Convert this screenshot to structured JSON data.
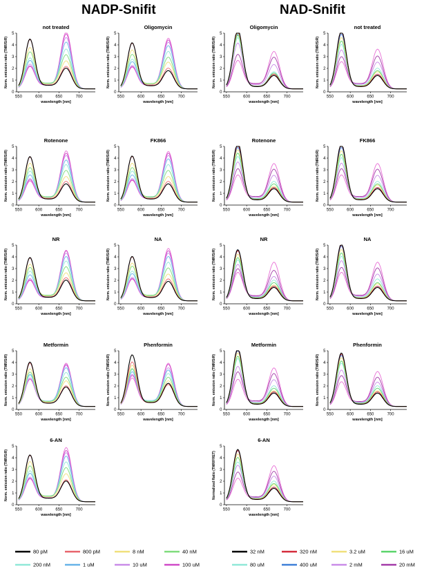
{
  "headers": {
    "left": "NADP-Snifit",
    "right": "NAD-Snifit"
  },
  "colors": {
    "nadp": [
      "#000000",
      "#e8636b",
      "#f0e07a",
      "#7edc7a",
      "#8fe8d8",
      "#66b3e8",
      "#c98be8",
      "#cf49c7",
      "#e86fd6"
    ],
    "nad": [
      "#000000",
      "#d42a3a",
      "#f0e07a",
      "#59d46a",
      "#8fe8d8",
      "#3d7fd8",
      "#c98be8",
      "#a33aa8",
      "#e86fd6"
    ]
  },
  "legend": {
    "nadp": [
      {
        "label": "80 pM"
      },
      {
        "label": "800 pM"
      },
      {
        "label": "8 nM"
      },
      {
        "label": "40 nM"
      },
      {
        "label": "200 nM"
      },
      {
        "label": "1 uM"
      },
      {
        "label": "10 uM"
      },
      {
        "label": "100 uM"
      }
    ],
    "nad": [
      {
        "label": "32 nM"
      },
      {
        "label": "320 nM"
      },
      {
        "label": "3.2 uM"
      },
      {
        "label": "16 uM"
      },
      {
        "label": "80 uM"
      },
      {
        "label": "400 uM"
      },
      {
        "label": "2 mM"
      },
      {
        "label": "20 mM"
      }
    ]
  },
  "chart_data": [
    {
      "type": "line",
      "title": "not treated",
      "xlabel": "wavelength [nm]",
      "ylabel": "Norm. emission ratio (TMR/SiR)",
      "xlim": [
        545,
        740
      ],
      "ylim": [
        0,
        5
      ],
      "xticks": [
        550,
        600,
        650,
        700
      ],
      "yticks": [
        0,
        1,
        2,
        3,
        4,
        5
      ],
      "peaks1": [
        4.15,
        4.1,
        3.4,
        3.0,
        2.5,
        2.3,
        2.0,
        1.85,
        1.8
      ],
      "peaks2": [
        1.7,
        1.85,
        2.3,
        2.8,
        3.3,
        3.9,
        4.3,
        4.6,
        4.8
      ],
      "series_group": "nadp"
    },
    {
      "type": "line",
      "title": "Oligomycin",
      "xlabel": "wavelength [nm]",
      "ylabel": "Norm. emission ratio (TMR/SiR)",
      "xlim": [
        545,
        740
      ],
      "ylim": [
        0,
        5
      ],
      "xticks": [
        550,
        600,
        650,
        700
      ],
      "yticks": [
        0,
        1,
        2,
        3,
        4,
        5
      ],
      "peaks1": [
        3.85,
        3.8,
        3.2,
        2.8,
        2.4,
        2.2,
        1.9,
        1.8,
        1.75
      ],
      "peaks2": [
        1.5,
        1.7,
        2.2,
        2.6,
        3.1,
        3.6,
        3.9,
        4.1,
        4.25
      ],
      "series_group": "nadp"
    },
    {
      "type": "line",
      "title": "Oligomycin",
      "xlabel": "wavelength [nm]",
      "ylabel": "Norm. emission ratio (TMR/SiR)",
      "xlim": [
        545,
        740
      ],
      "ylim": [
        0,
        5
      ],
      "xticks": [
        550,
        600,
        650,
        700
      ],
      "yticks": [
        0,
        1,
        2,
        3,
        4,
        5
      ],
      "peaks1": [
        5.0,
        4.9,
        4.7,
        4.5,
        4.3,
        4.6,
        3.8,
        2.8,
        2.3
      ],
      "peaks2": [
        1.1,
        1.2,
        1.2,
        1.3,
        1.4,
        1.2,
        2.0,
        2.6,
        3.1
      ],
      "series_group": "nad"
    },
    {
      "type": "line",
      "title": "not treated",
      "xlabel": "wavelength [nm]",
      "ylabel": "Norm. emission ratio (TMR/SiR)",
      "xlim": [
        545,
        740
      ],
      "ylim": [
        0,
        5
      ],
      "xticks": [
        550,
        600,
        650,
        700
      ],
      "yticks": [
        0,
        1,
        2,
        3,
        4,
        5
      ],
      "peaks1": [
        4.9,
        4.8,
        4.3,
        4.0,
        3.7,
        4.6,
        3.2,
        2.6,
        2.2
      ],
      "peaks2": [
        1.1,
        1.2,
        1.4,
        1.5,
        1.7,
        1.2,
        2.2,
        2.7,
        3.3
      ],
      "series_group": "nad"
    },
    {
      "type": "line",
      "title": "Rotenone",
      "xlabel": "wavelength [nm]",
      "ylabel": "Norm. emission ratio (TMR/SiR)",
      "xlim": [
        545,
        740
      ],
      "ylim": [
        0,
        5
      ],
      "xticks": [
        550,
        600,
        650,
        700
      ],
      "yticks": [
        0,
        1,
        2,
        3,
        4,
        5
      ],
      "peaks1": [
        3.8,
        3.75,
        3.2,
        2.8,
        2.5,
        2.2,
        1.9,
        1.8,
        1.7
      ],
      "peaks2": [
        1.5,
        1.7,
        2.1,
        2.6,
        3.1,
        3.5,
        3.9,
        4.1,
        4.3
      ],
      "series_group": "nadp"
    },
    {
      "type": "line",
      "title": "FK866",
      "xlabel": "wavelength [nm]",
      "ylabel": "Norm. emission ratio (TMR/SiR)",
      "xlim": [
        545,
        740
      ],
      "ylim": [
        0,
        5
      ],
      "xticks": [
        550,
        600,
        650,
        700
      ],
      "yticks": [
        0,
        1,
        2,
        3,
        4,
        5
      ],
      "peaks1": [
        3.85,
        3.8,
        3.2,
        2.8,
        2.5,
        2.2,
        1.9,
        1.8,
        1.75
      ],
      "peaks2": [
        1.5,
        1.7,
        2.1,
        2.6,
        3.1,
        3.6,
        3.9,
        4.1,
        4.25
      ],
      "series_group": "nadp"
    },
    {
      "type": "line",
      "title": "Rotenone",
      "xlabel": "wavelength [nm]",
      "ylabel": "Norm. emission ratio (TMR/SiR)",
      "xlim": [
        545,
        740
      ],
      "ylim": [
        0,
        5
      ],
      "xticks": [
        550,
        600,
        650,
        700
      ],
      "yticks": [
        0,
        1,
        2,
        3,
        4,
        5
      ],
      "peaks1": [
        5.0,
        4.8,
        4.4,
        4.1,
        3.8,
        4.6,
        3.3,
        2.7,
        2.2
      ],
      "peaks2": [
        1.1,
        1.2,
        1.3,
        1.5,
        1.7,
        1.2,
        2.2,
        2.7,
        3.2
      ],
      "series_group": "nad"
    },
    {
      "type": "line",
      "title": "FK866",
      "xlabel": "wavelength [nm]",
      "ylabel": "Norm. emission ratio (TMR/SiR)",
      "xlim": [
        545,
        740
      ],
      "ylim": [
        0,
        5
      ],
      "xticks": [
        550,
        600,
        650,
        700
      ],
      "yticks": [
        0,
        1,
        2,
        3,
        4,
        5
      ],
      "peaks1": [
        4.9,
        4.8,
        4.3,
        4.0,
        3.7,
        4.6,
        3.2,
        2.7,
        2.2
      ],
      "peaks2": [
        1.1,
        1.2,
        1.4,
        1.5,
        1.7,
        1.2,
        2.2,
        2.7,
        3.2
      ],
      "series_group": "nad"
    },
    {
      "type": "line",
      "title": "NR",
      "xlabel": "wavelength [nm]",
      "ylabel": "Norm. emission ratio (TMR/SiR)",
      "xlim": [
        545,
        740
      ],
      "ylim": [
        0,
        5
      ],
      "xticks": [
        550,
        600,
        650,
        700
      ],
      "yticks": [
        0,
        1,
        2,
        3,
        4,
        5
      ],
      "peaks1": [
        3.6,
        3.55,
        3.0,
        2.7,
        2.4,
        2.1,
        1.8,
        1.7,
        1.65
      ],
      "peaks2": [
        1.7,
        1.9,
        2.3,
        2.8,
        3.3,
        3.7,
        4.0,
        4.2,
        4.25
      ],
      "series_group": "nadp"
    },
    {
      "type": "line",
      "title": "NA",
      "xlabel": "wavelength [nm]",
      "ylabel": "Norm. emission ratio (TMR/SiR)",
      "xlim": [
        545,
        740
      ],
      "ylim": [
        0,
        5
      ],
      "xticks": [
        550,
        600,
        650,
        700
      ],
      "yticks": [
        0,
        1,
        2,
        3,
        4,
        5
      ],
      "peaks1": [
        3.7,
        3.65,
        3.1,
        2.8,
        2.4,
        2.2,
        1.9,
        1.8,
        1.75
      ],
      "peaks2": [
        1.6,
        1.8,
        2.2,
        2.7,
        3.2,
        3.7,
        4.0,
        4.2,
        4.4
      ],
      "series_group": "nadp"
    },
    {
      "type": "line",
      "title": "NR",
      "xlabel": "wavelength [nm]",
      "ylabel": "Norm. emission ratio (TMR/SiR)",
      "xlim": [
        545,
        740
      ],
      "ylim": [
        0,
        5
      ],
      "xticks": [
        550,
        600,
        650,
        700
      ],
      "yticks": [
        0,
        1,
        2,
        3,
        4,
        5
      ],
      "peaks1": [
        4.3,
        4.2,
        3.9,
        3.6,
        3.4,
        4.3,
        3.0,
        2.6,
        2.3
      ],
      "peaks2": [
        1.1,
        1.2,
        1.3,
        1.5,
        1.7,
        1.2,
        2.0,
        2.5,
        3.2
      ],
      "series_group": "nad"
    },
    {
      "type": "line",
      "title": "NA",
      "xlabel": "wavelength [nm]",
      "ylabel": "Norm. emission ratio (TMR/SiR)",
      "xlim": [
        545,
        740
      ],
      "ylim": [
        0,
        5
      ],
      "xticks": [
        550,
        600,
        650,
        700
      ],
      "yticks": [
        0,
        1,
        2,
        3,
        4,
        5
      ],
      "peaks1": [
        4.8,
        4.7,
        4.3,
        4.0,
        3.7,
        4.6,
        3.3,
        2.7,
        2.3
      ],
      "peaks2": [
        1.1,
        1.2,
        1.4,
        1.5,
        1.8,
        1.2,
        2.2,
        2.7,
        3.2
      ],
      "series_group": "nad"
    },
    {
      "type": "line",
      "title": "Metformin",
      "xlabel": "wavelength [nm]",
      "ylabel": "Norm. emission ratio (TMR/SiR)",
      "xlim": [
        545,
        740
      ],
      "ylim": [
        0,
        5
      ],
      "xticks": [
        550,
        600,
        650,
        700
      ],
      "yticks": [
        0,
        1,
        2,
        3,
        4,
        5
      ],
      "peaks1": [
        3.7,
        3.6,
        3.1,
        2.8,
        2.5,
        2.6,
        2.3,
        2.2,
        2.3
      ],
      "peaks2": [
        1.6,
        1.7,
        2.1,
        2.4,
        2.8,
        3.2,
        3.4,
        3.5,
        3.6
      ],
      "series_group": "nadp"
    },
    {
      "type": "line",
      "title": "Phenformin",
      "xlabel": "wavelength [nm]",
      "ylabel": "Norm. emission ratio (TMR/SiR)",
      "xlim": [
        545,
        740
      ],
      "ylim": [
        0,
        5
      ],
      "xticks": [
        550,
        600,
        650,
        700
      ],
      "yticks": [
        0,
        1,
        2,
        3,
        4,
        5
      ],
      "peaks1": [
        4.3,
        3.7,
        3.4,
        3.1,
        3.0,
        2.8,
        2.6,
        2.5,
        2.3
      ],
      "peaks2": [
        1.9,
        1.8,
        2.1,
        2.4,
        2.7,
        3.0,
        3.2,
        3.5,
        3.6
      ],
      "series_group": "nadp"
    },
    {
      "type": "line",
      "title": "Metformin",
      "xlabel": "wavelength [nm]",
      "ylabel": "Norm. emission ratio (TMR/SiR)",
      "xlim": [
        545,
        740
      ],
      "ylim": [
        0,
        5
      ],
      "xticks": [
        550,
        600,
        650,
        700
      ],
      "yticks": [
        0,
        1,
        2,
        3,
        4,
        5
      ],
      "peaks1": [
        4.9,
        4.8,
        4.5,
        4.2,
        4.0,
        4.7,
        3.3,
        2.8,
        2.2
      ],
      "peaks2": [
        1.1,
        1.2,
        1.3,
        1.5,
        1.7,
        1.2,
        2.2,
        2.7,
        3.2
      ],
      "series_group": "nad"
    },
    {
      "type": "line",
      "title": "Phenformin",
      "xlabel": "wavelength [nm]",
      "ylabel": "Norm. emission ratio (TMR/SiR)",
      "xlim": [
        545,
        740
      ],
      "ylim": [
        0,
        5
      ],
      "xticks": [
        550,
        600,
        650,
        700
      ],
      "yticks": [
        0,
        1,
        2,
        3,
        4,
        5
      ],
      "peaks1": [
        4.5,
        4.4,
        4.1,
        3.8,
        3.6,
        4.3,
        3.0,
        2.5,
        2.0
      ],
      "peaks2": [
        1.1,
        1.2,
        1.3,
        1.5,
        1.7,
        1.1,
        2.0,
        2.4,
        2.9
      ],
      "series_group": "nad"
    },
    {
      "type": "line",
      "title": "6-AN",
      "xlabel": "wavelength [nm]",
      "ylabel": "Norm. emission ratio (TMR/SiR)",
      "xlim": [
        545,
        740
      ],
      "ylim": [
        0,
        5
      ],
      "xticks": [
        550,
        600,
        650,
        700
      ],
      "yticks": [
        0,
        1,
        2,
        3,
        4,
        5
      ],
      "peaks1": [
        3.9,
        3.85,
        3.3,
        2.9,
        2.5,
        2.3,
        2.0,
        1.9,
        1.85
      ],
      "peaks2": [
        1.7,
        1.8,
        2.3,
        2.8,
        3.3,
        3.8,
        4.1,
        4.3,
        4.55
      ],
      "series_group": "nadp"
    },
    {
      "type": "line",
      "title": "6-AN",
      "xlabel": "wavelength [nm]",
      "ylabel": "Normalized Ratio (TMR/FRET)",
      "xlim": [
        545,
        740
      ],
      "ylim": [
        0,
        5
      ],
      "xticks": [
        550,
        600,
        650,
        700
      ],
      "yticks": [
        0,
        1,
        2,
        3,
        4,
        5
      ],
      "peaks1": [
        4.4,
        4.3,
        4.0,
        3.7,
        3.3,
        4.3,
        3.0,
        2.4,
        1.9
      ],
      "peaks2": [
        1.1,
        1.2,
        1.4,
        1.5,
        1.7,
        1.2,
        2.1,
        2.5,
        3.0
      ],
      "series_group": "nad"
    }
  ]
}
